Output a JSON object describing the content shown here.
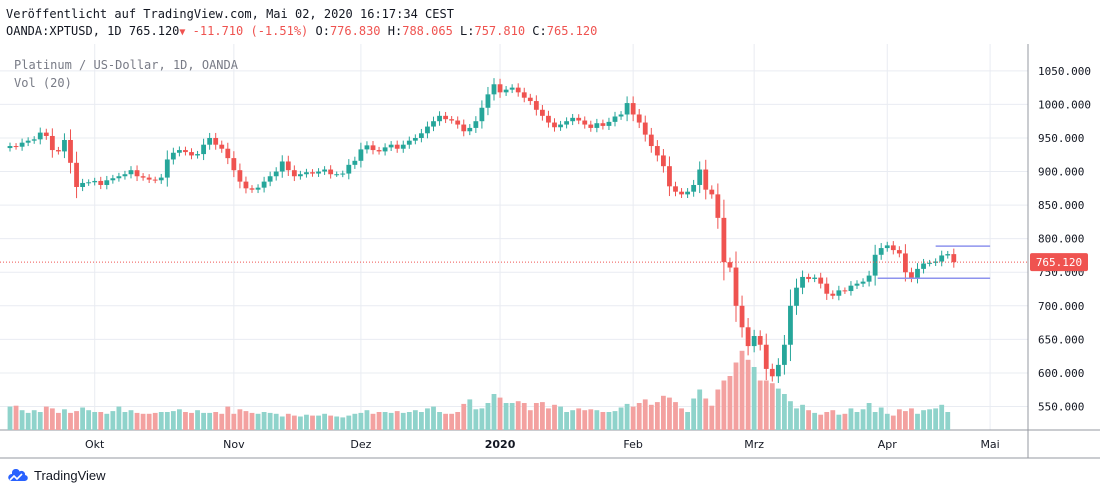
{
  "header": {
    "published": "Veröffentlicht auf TradingView.com, Mai 02, 2020 16:17:34 CEST",
    "symbol_line": "OANDA:XPTUSD, 1D",
    "last": "765.120",
    "change": "-11.710 (-1.51%)",
    "o_label": "O:",
    "o_value": "776.830",
    "h_label": "H:",
    "h_value": "788.065",
    "l_label": "L:",
    "l_value": "757.810",
    "c_label": "C:",
    "c_value": "765.120"
  },
  "legend": {
    "title": "Platinum / US-Dollar, 1D, OANDA",
    "volume": "Vol (20)"
  },
  "footer": {
    "brand": "TradingView",
    "logo_icon": "tradingview-logo-icon"
  },
  "colors": {
    "up": "#26a69a",
    "down": "#ef5350",
    "vol_up": "#8fd3cb",
    "vol_down": "#f3a1a0",
    "grid": "#e9ecf2",
    "axis_text": "#131722",
    "price_line": "#ef5350",
    "channel": "#8e93ee"
  },
  "chart_data": {
    "type": "candlestick",
    "title": "Platinum / US-Dollar, 1D, OANDA",
    "ylim": [
      515,
      1090
    ],
    "y_ticks": [
      550,
      600,
      650,
      700,
      750,
      800,
      850,
      900,
      950,
      1000,
      1050
    ],
    "y_tick_labels": [
      "550.000",
      "600.000",
      "650.000",
      "700.000",
      "750.000",
      "800.000",
      "850.000",
      "900.000",
      "950.000",
      "1000.000",
      "1050.000"
    ],
    "x_ticks": [
      {
        "label": "Okt",
        "date": "2019-10-01",
        "bold": false
      },
      {
        "label": "Nov",
        "date": "2019-11-01",
        "bold": false
      },
      {
        "label": "Dez",
        "date": "2019-12-02",
        "bold": false
      },
      {
        "label": "2020",
        "date": "2020-01-02",
        "bold": true
      },
      {
        "label": "Feb",
        "date": "2020-02-03",
        "bold": false
      },
      {
        "label": "Mrz",
        "date": "2020-03-02",
        "bold": false
      },
      {
        "label": "Apr",
        "date": "2020-04-01",
        "bold": false
      },
      {
        "label": "Mai",
        "date": "2020-05-01",
        "bold": false
      }
    ],
    "current_price": 765.12,
    "current_price_label": "765.120",
    "channel": {
      "upper": 789,
      "lower": 741,
      "start_date": "2020-04-13",
      "end_date": "2020-05-08"
    },
    "grid": true,
    "close": [
      938,
      937,
      943,
      946,
      948,
      958,
      953,
      932,
      930,
      947,
      913,
      877,
      883,
      884,
      886,
      880,
      887,
      890,
      893,
      896,
      902,
      893,
      891,
      888,
      887,
      891,
      918,
      928,
      932,
      929,
      924,
      926,
      940,
      950,
      940,
      934,
      920,
      902,
      885,
      875,
      873,
      876,
      885,
      893,
      900,
      915,
      902,
      893,
      896,
      899,
      897,
      900,
      903,
      896,
      896,
      897,
      910,
      916,
      933,
      939,
      932,
      930,
      936,
      940,
      934,
      940,
      946,
      950,
      957,
      967,
      975,
      983,
      978,
      976,
      970,
      960,
      965,
      975,
      995,
      1015,
      1030,
      1018,
      1022,
      1025,
      1018,
      1010,
      1005,
      992,
      983,
      973,
      966,
      970,
      975,
      980,
      976,
      970,
      965,
      972,
      968,
      974,
      982,
      985,
      1002,
      985,
      973,
      955,
      938,
      924,
      908,
      878,
      870,
      866,
      870,
      880,
      903,
      873,
      866,
      831,
      765,
      757,
      700,
      668,
      640,
      655,
      642,
      606,
      595,
      612,
      642,
      700,
      727,
      743,
      740,
      742,
      733,
      718,
      715,
      723,
      722,
      730,
      733,
      736,
      745,
      776,
      786,
      790,
      783,
      778,
      750,
      742,
      755,
      763,
      764,
      766,
      775,
      777,
      765
    ],
    "volume_relative": [
      0.26,
      0.27,
      0.22,
      0.19,
      0.22,
      0.2,
      0.26,
      0.24,
      0.19,
      0.23,
      0.19,
      0.21,
      0.25,
      0.22,
      0.2,
      0.2,
      0.18,
      0.21,
      0.26,
      0.2,
      0.22,
      0.19,
      0.18,
      0.18,
      0.19,
      0.2,
      0.2,
      0.21,
      0.23,
      0.2,
      0.19,
      0.22,
      0.19,
      0.19,
      0.2,
      0.18,
      0.26,
      0.18,
      0.23,
      0.21,
      0.19,
      0.18,
      0.2,
      0.19,
      0.18,
      0.15,
      0.18,
      0.16,
      0.15,
      0.17,
      0.16,
      0.16,
      0.18,
      0.16,
      0.15,
      0.14,
      0.16,
      0.18,
      0.19,
      0.22,
      0.18,
      0.2,
      0.2,
      0.19,
      0.21,
      0.19,
      0.2,
      0.22,
      0.2,
      0.24,
      0.26,
      0.2,
      0.18,
      0.18,
      0.2,
      0.29,
      0.34,
      0.23,
      0.24,
      0.3,
      0.4,
      0.36,
      0.3,
      0.3,
      0.32,
      0.3,
      0.22,
      0.3,
      0.31,
      0.24,
      0.28,
      0.26,
      0.2,
      0.22,
      0.24,
      0.22,
      0.23,
      0.22,
      0.2,
      0.2,
      0.21,
      0.25,
      0.29,
      0.26,
      0.3,
      0.34,
      0.28,
      0.31,
      0.38,
      0.36,
      0.31,
      0.24,
      0.2,
      0.35,
      0.45,
      0.35,
      0.27,
      0.45,
      0.55,
      0.6,
      0.75,
      0.88,
      0.78,
      0.7,
      0.55,
      0.55,
      0.52,
      0.46,
      0.4,
      0.32,
      0.24,
      0.28,
      0.22,
      0.19,
      0.17,
      0.2,
      0.22,
      0.17,
      0.18,
      0.24,
      0.2,
      0.23,
      0.3,
      0.2,
      0.25,
      0.18,
      0.16,
      0.23,
      0.21,
      0.24,
      0.18,
      0.22,
      0.23,
      0.24,
      0.28,
      0.2
    ]
  }
}
